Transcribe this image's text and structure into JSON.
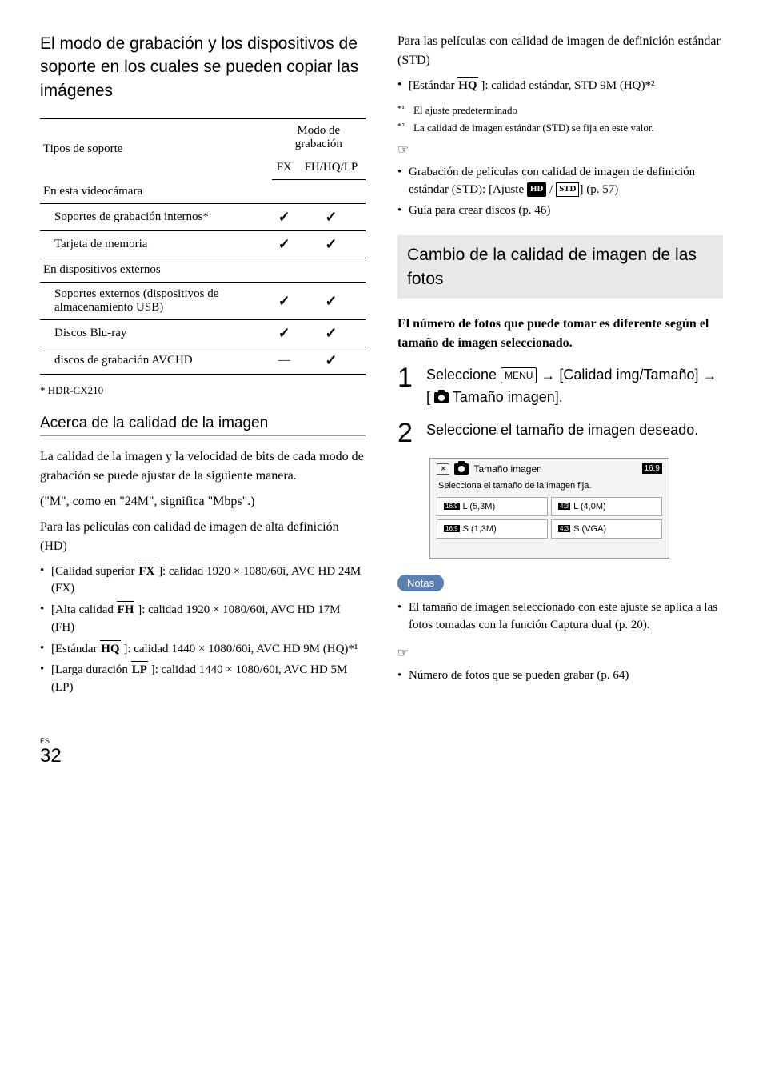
{
  "left": {
    "heading": "El modo de grabación y los dispositivos de soporte en los cuales se pueden copiar las imágenes",
    "table": {
      "col_media": "Tipos de soporte",
      "col_mode": "Modo de grabación",
      "col_fx": "FX",
      "col_fh": "FH/HQ/LP",
      "group1": "En esta videocámara",
      "row_internal": "Soportes de grabación internos*",
      "row_memcard": "Tarjeta de memoria",
      "group2": "En dispositivos externos",
      "row_usb": "Soportes externos (dispositivos de almacenamiento USB)",
      "row_bluray": "Discos Blu-ray",
      "row_avchd": "discos de grabación AVCHD",
      "dash": "—",
      "check": "✓"
    },
    "footnote": "* HDR-CX210",
    "quality_heading": "Acerca de la calidad de la imagen",
    "quality_p1": "La calidad de la imagen y la velocidad de bits de cada modo de grabación se puede ajustar de la siguiente manera.",
    "quality_p2": "(\"M\", como en \"24M\", significa \"Mbps\".)",
    "quality_p3": "Para las películas con calidad de imagen de alta definición (HD)",
    "hd_items": [
      {
        "pre": "[Calidad superior ",
        "code": "FX",
        "post": " ]: calidad 1920 × 1080/60i, AVC HD 24M (FX)"
      },
      {
        "pre": "[Alta calidad ",
        "code": "FH",
        "post": " ]: calidad 1920 × 1080/60i, AVC HD 17M (FH)"
      },
      {
        "pre": "[Estándar ",
        "code": "HQ",
        "post": " ]: calidad 1440 × 1080/60i, AVC HD 9M (HQ)*¹"
      },
      {
        "pre": "[Larga duración ",
        "code": "LP",
        "post": " ]: calidad 1440 × 1080/60i, AVC HD 5M (LP)"
      }
    ]
  },
  "right": {
    "std_intro": "Para las películas con calidad de imagen de definición estándar (STD)",
    "std_item": {
      "pre": "[Estándar ",
      "code": "HQ",
      "post": " ]: calidad estándar, STD 9M (HQ)*²"
    },
    "note1_sup": "*¹",
    "note1": "El ajuste predeterminado",
    "note2_sup": "*²",
    "note2": "La calidad de imagen estándar (STD) se fija en este valor.",
    "ref1_pre": "Grabación de películas con calidad de imagen de definición estándar (STD): [Ajuste ",
    "ref1_post": "] (p. 57)",
    "ref2": "Guía para crear discos (p. 46)",
    "grey_heading": "Cambio de la calidad de imagen de las fotos",
    "bold_intro": "El número de fotos que puede tomar es diferente según el tamaño de imagen seleccionado.",
    "step1_a": "Seleccione ",
    "step1_menu": "MENU",
    "step1_b": " [Calidad img/Tamaño] ",
    "step1_c": " Tamaño imagen].",
    "step2": "Seleccione el tamaño de imagen deseado.",
    "screenshot": {
      "title": "Tamaño imagen",
      "ratio": "16:9",
      "sub": "Selecciona el tamaño de la imagen fija.",
      "opt1": "L (5,3M)",
      "opt2": "L (4,0M)",
      "opt3": "S (1,3M)",
      "opt4": "S (VGA)",
      "b169": "16:9",
      "b43": "4:3"
    },
    "notes_label": "Notas",
    "notes_item": "El tamaño de imagen seleccionado con este ajuste se aplica a las fotos tomadas con la función Captura dual (p. 20).",
    "ref3": "Número de fotos que se pueden grabar (p. 64)"
  },
  "page": {
    "es": "ES",
    "num": "32"
  }
}
